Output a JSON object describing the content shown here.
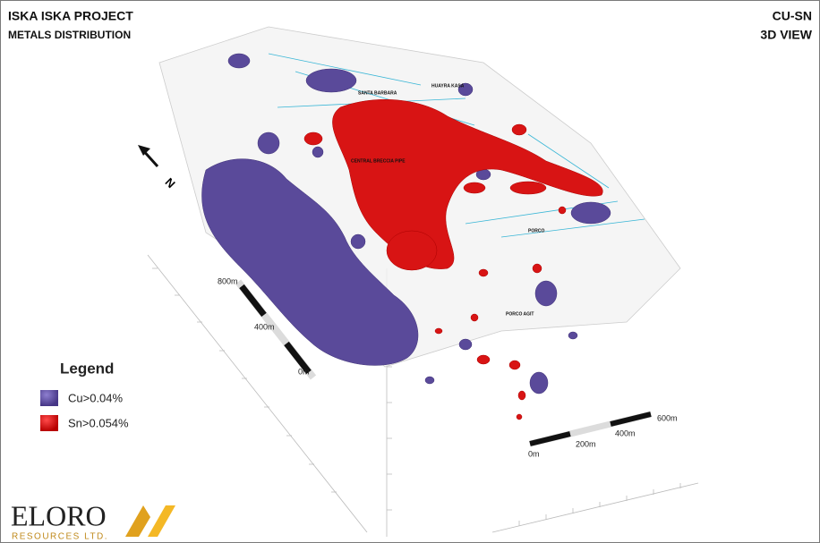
{
  "header": {
    "title": "ISKA ISKA PROJECT",
    "subtitle": "METALS DISTRIBUTION",
    "right_title": "CU-SN",
    "right_subtitle": "3D VIEW"
  },
  "north": "N",
  "legend": {
    "title": "Legend",
    "items": [
      "Cu>0.04%",
      "Sn>0.054%"
    ]
  },
  "vertical_scale": [
    "800m",
    "400m",
    "0m"
  ],
  "horizontal_scale": [
    "0m",
    "200m",
    "400m",
    "600m"
  ],
  "places": [
    "SANTA BARBARA",
    "HUAYRA KASA",
    "CENTRAL BRECCIA PIPE",
    "PORCO",
    "PORCO AGIT"
  ],
  "logo": {
    "name": "ELORO",
    "tagline": "RESOURCES LTD."
  }
}
